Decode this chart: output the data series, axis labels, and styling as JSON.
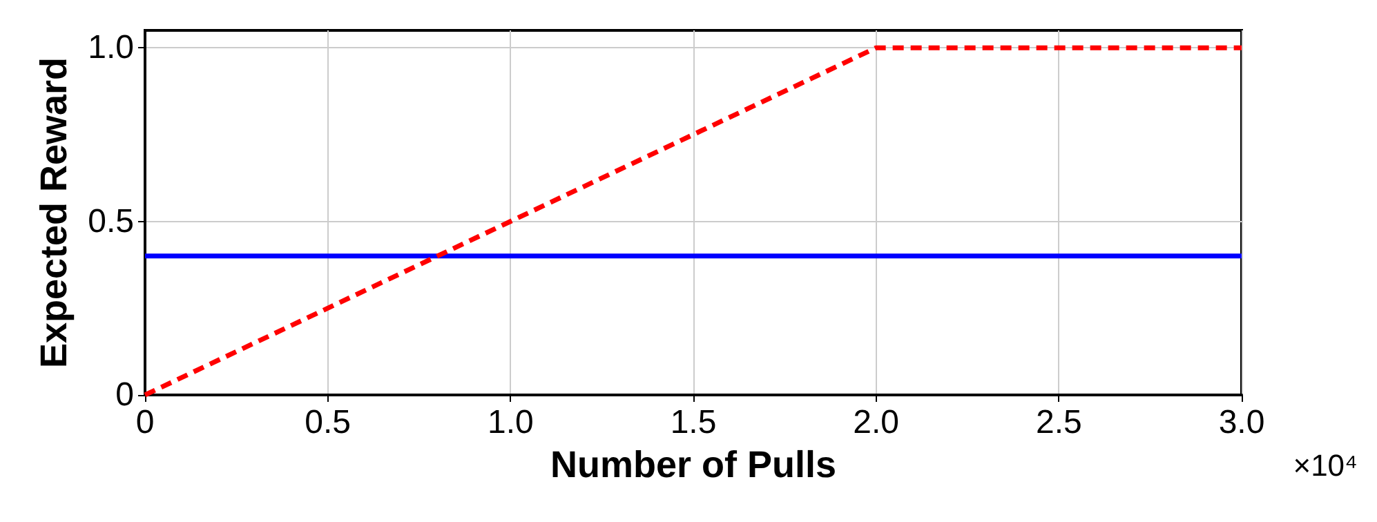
{
  "chart_data": {
    "type": "line",
    "xlabel": "Number of Pulls",
    "ylabel": "Expected Reward",
    "xlim": [
      0,
      3
    ],
    "xticks": [
      0,
      0.5,
      {
        "value": 1,
        "label": "1.0"
      },
      1.5,
      {
        "value": 2,
        "label": "2.0"
      },
      2.5,
      {
        "value": 3,
        "label": "3.0"
      }
    ],
    "ylim": [
      0,
      1.05
    ],
    "yticks": [
      0,
      0.5,
      {
        "value": 1,
        "label": "1.0"
      }
    ],
    "grid": true,
    "marker": "none",
    "annotations": [
      "×10⁴"
    ],
    "series": [
      {
        "color": "#ff0000",
        "line_style": "dashed",
        "x": [
          0,
          2,
          3
        ],
        "values": [
          0,
          1,
          1
        ]
      },
      {
        "color": "#0000ff",
        "line_style": "solid",
        "x": [
          0,
          3
        ],
        "values": [
          0.4,
          0.4
        ]
      }
    ]
  }
}
